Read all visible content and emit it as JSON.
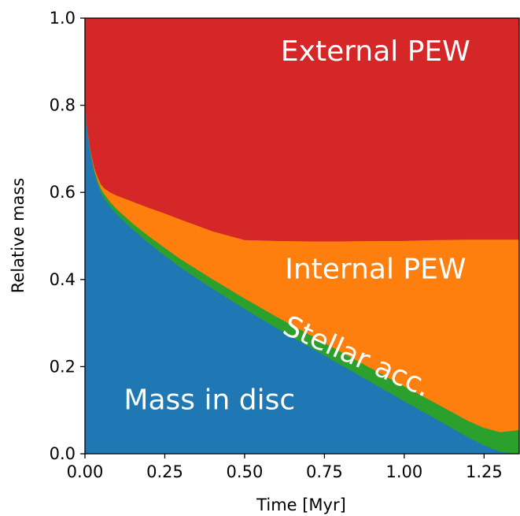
{
  "chart_data": {
    "type": "area",
    "stacked": true,
    "title": "",
    "xlabel": "Time [Myr]",
    "ylabel": "Relative mass",
    "xlim": [
      0.0,
      1.36
    ],
    "ylim": [
      0.0,
      1.0
    ],
    "grid": false,
    "legend": "none",
    "xticks": [
      "0.00",
      "0.25",
      "0.50",
      "0.75",
      "1.00",
      "1.25"
    ],
    "yticks": [
      "0.0",
      "0.2",
      "0.4",
      "0.6",
      "0.8",
      "1.0"
    ],
    "x": [
      0.0,
      0.01,
      0.02,
      0.03,
      0.04,
      0.05,
      0.06,
      0.08,
      0.1,
      0.15,
      0.2,
      0.25,
      0.3,
      0.4,
      0.5,
      0.6,
      0.7,
      0.8,
      0.9,
      1.0,
      1.1,
      1.2,
      1.25,
      1.3,
      1.36
    ],
    "series": [
      {
        "name": "Mass in disc",
        "color": "#1f77b4",
        "values": [
          0.8,
          0.73,
          0.68,
          0.645,
          0.62,
          0.6,
          0.587,
          0.567,
          0.55,
          0.515,
          0.484,
          0.455,
          0.428,
          0.379,
          0.333,
          0.289,
          0.247,
          0.205,
          0.163,
          0.121,
          0.08,
          0.038,
          0.02,
          0.005,
          0.0
        ]
      },
      {
        "name": "Stellar acc.",
        "color": "#2ca02c",
        "values": [
          0.0,
          0.002,
          0.004,
          0.006,
          0.008,
          0.009,
          0.01,
          0.011,
          0.012,
          0.014,
          0.016,
          0.018,
          0.019,
          0.022,
          0.024,
          0.026,
          0.028,
          0.03,
          0.032,
          0.034,
          0.036,
          0.038,
          0.04,
          0.045,
          0.055
        ]
      },
      {
        "name": "Internal PEW",
        "color": "#ff7f0e",
        "values": [
          0.0,
          0.001,
          0.003,
          0.005,
          0.007,
          0.01,
          0.013,
          0.022,
          0.031,
          0.05,
          0.065,
          0.079,
          0.091,
          0.11,
          0.134,
          0.174,
          0.213,
          0.253,
          0.294,
          0.334,
          0.375,
          0.416,
          0.432,
          0.442,
          0.437
        ]
      },
      {
        "name": "External PEW",
        "color": "#d62728",
        "values": [
          0.2,
          0.267,
          0.313,
          0.344,
          0.365,
          0.381,
          0.39,
          0.4,
          0.407,
          0.421,
          0.435,
          0.448,
          0.462,
          0.489,
          0.509,
          0.511,
          0.512,
          0.512,
          0.511,
          0.511,
          0.509,
          0.508,
          0.508,
          0.508,
          0.508
        ]
      }
    ],
    "annotations": [
      {
        "text": "External PEW",
        "x": 0.91,
        "y": 0.92,
        "rotation": 0
      },
      {
        "text": "Internal PEW",
        "x": 0.91,
        "y": 0.42,
        "rotation": 0
      },
      {
        "text": "Stellar acc.",
        "x": 0.85,
        "y": 0.22,
        "rotation": 24
      },
      {
        "text": "Mass in disc",
        "x": 0.39,
        "y": 0.12,
        "rotation": 0
      }
    ]
  }
}
